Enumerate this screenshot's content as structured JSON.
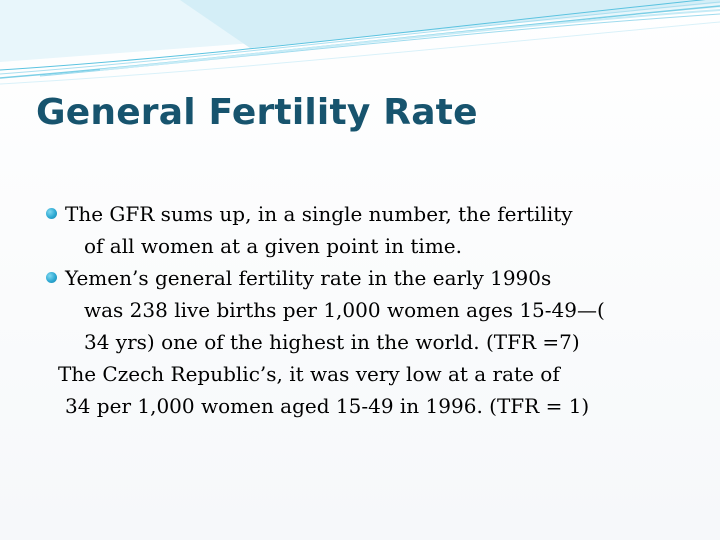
{
  "slide": {
    "title": "General Fertility Rate",
    "bullets": [
      {
        "lines": [
          "The GFR sums up, in a single number, the fertility",
          "of all women at a given point in time."
        ]
      },
      {
        "lines": [
          "Yemen’s general fertility rate in the early 1990s",
          "was 238 live births per 1,000 women ages 15-49—(",
          "34 yrs) one of the highest in the world. (TFR =7)"
        ]
      }
    ],
    "continuation": [
      "The Czech Republic’s, it was very low at a rate of",
      "34 per 1,000 women aged 15-49 in 1996.    (TFR = 1)"
    ]
  },
  "colors": {
    "title": "#17546e",
    "bullet": "#2da8d2",
    "stripes": "#5bc3e0"
  }
}
